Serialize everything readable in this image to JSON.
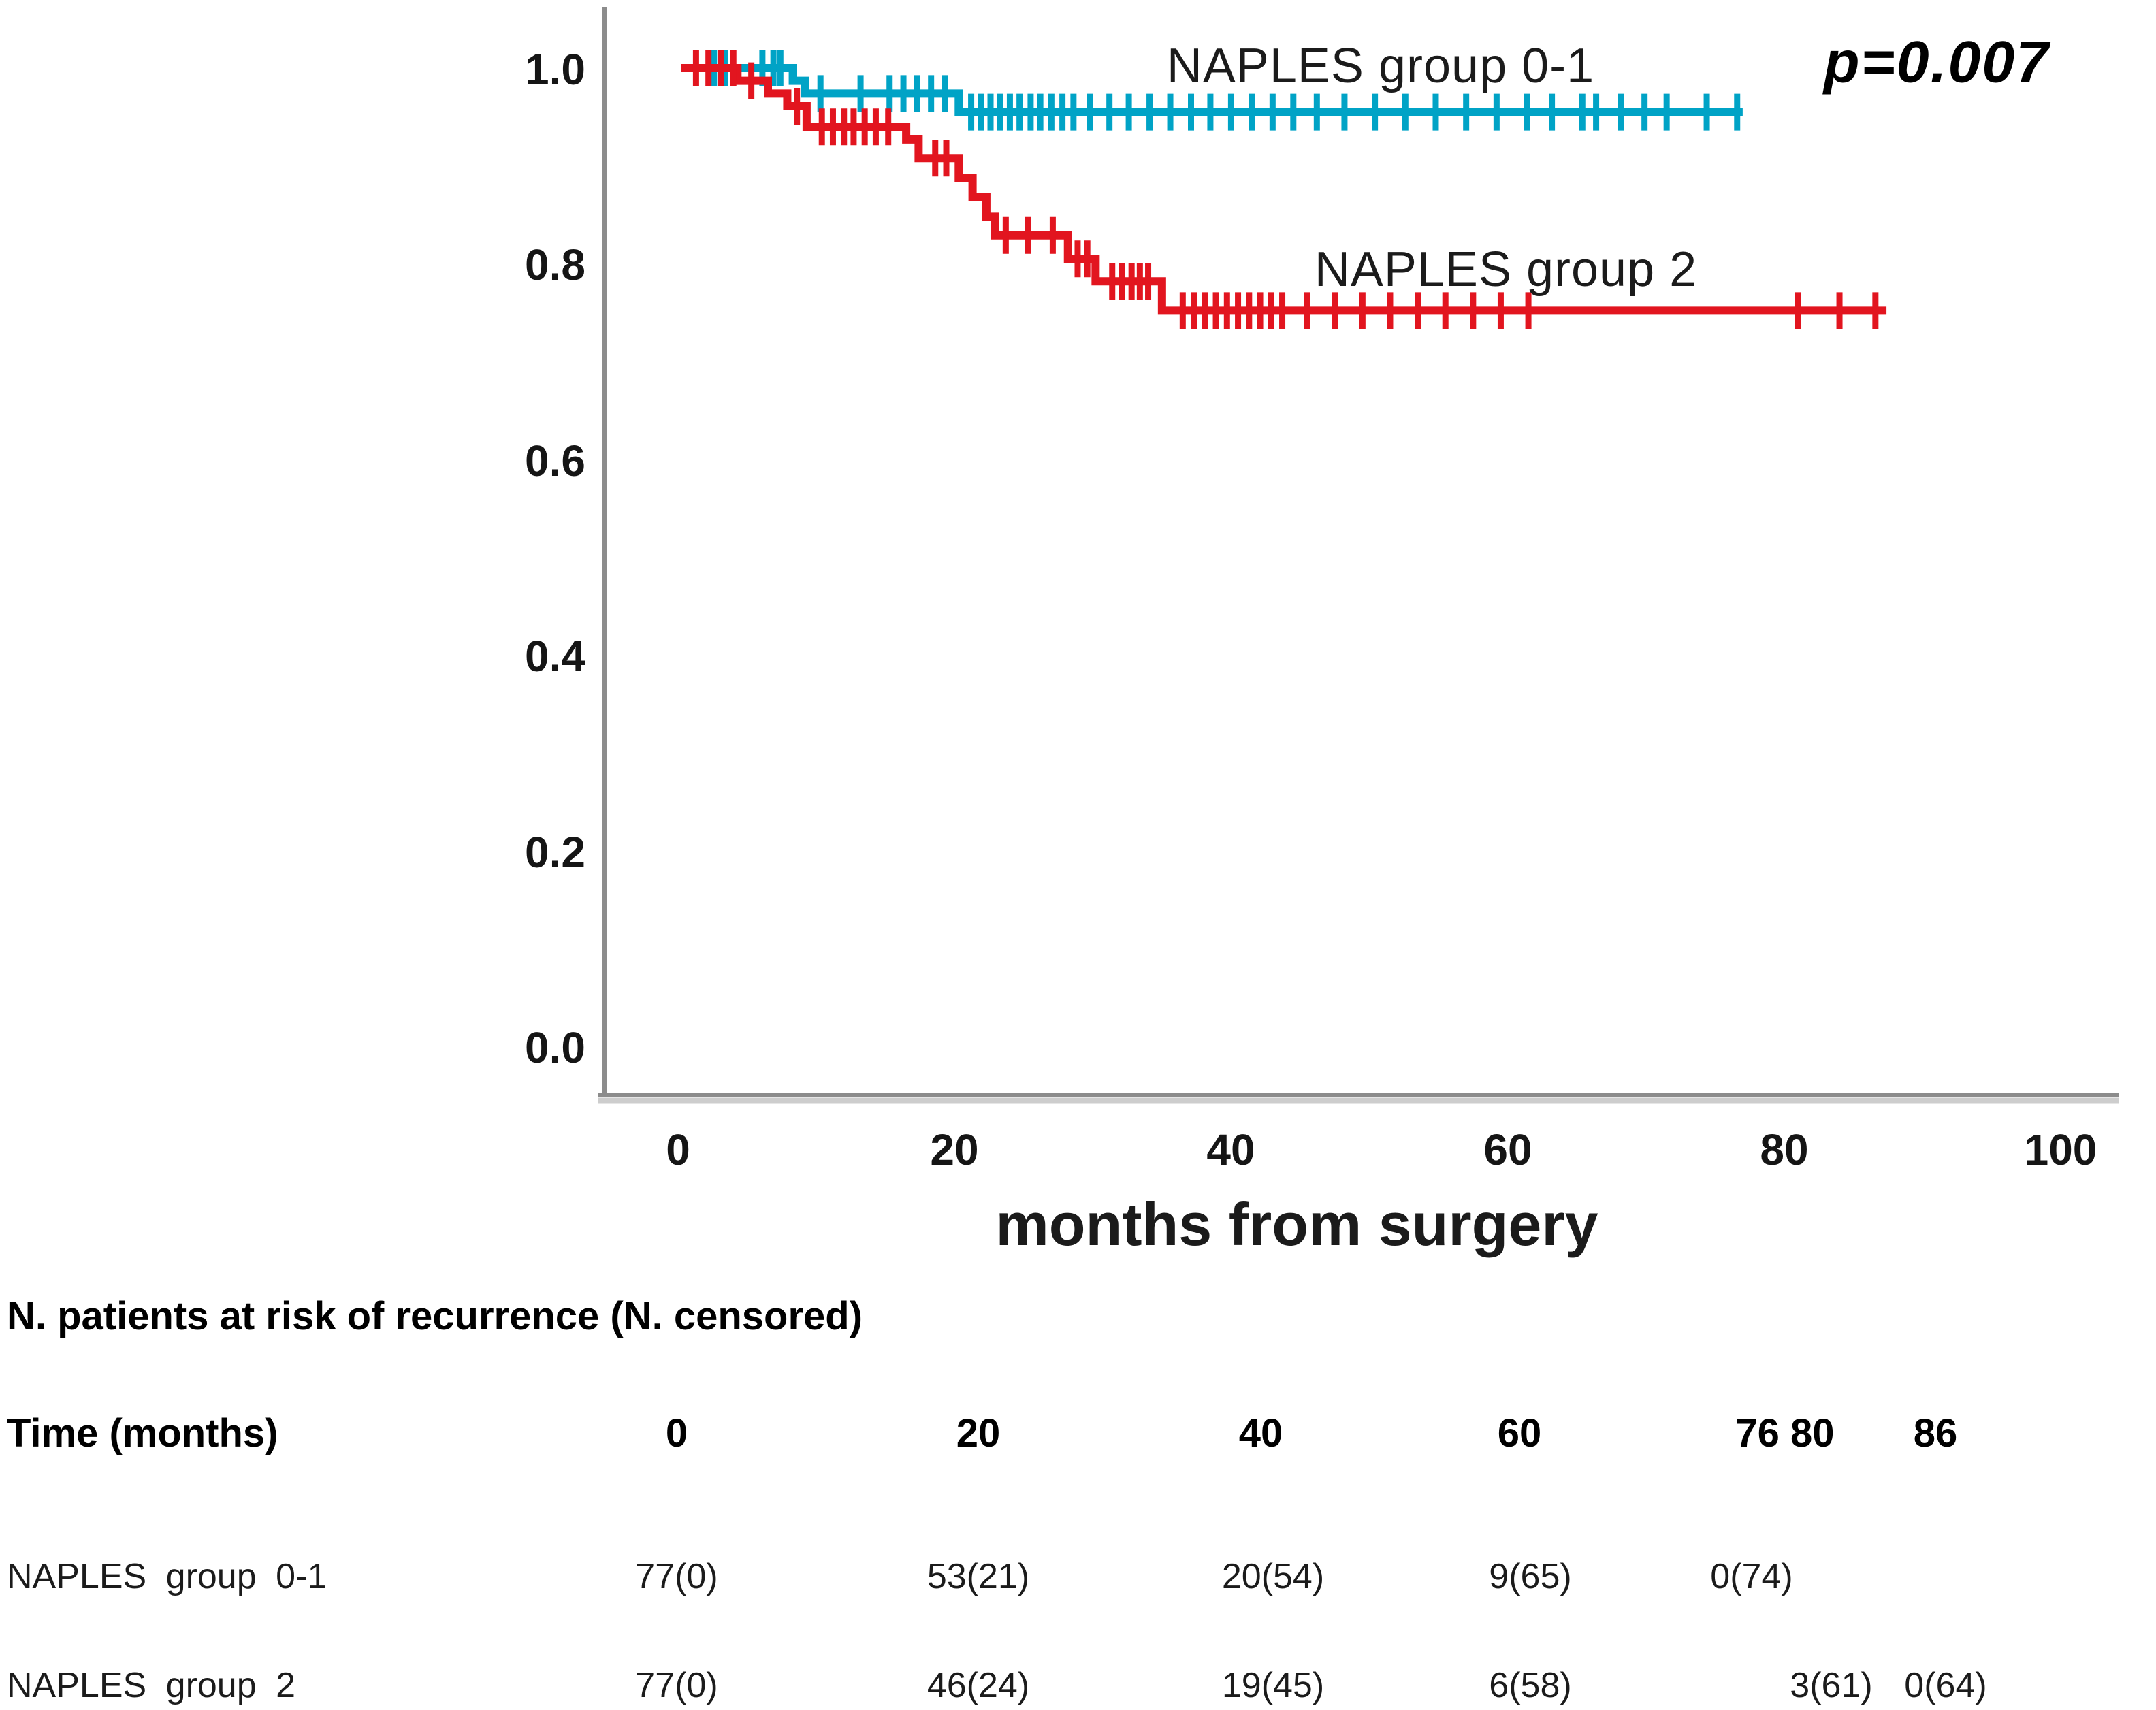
{
  "page": {
    "background": "#ffffff"
  },
  "chart_data": {
    "type": "line",
    "subtype": "kaplan-meier-step",
    "title": "",
    "xlabel": "months from surgery",
    "ylabel": "",
    "xlim": [
      0,
      104
    ],
    "ylim": [
      0.0,
      1.05
    ],
    "grid": false,
    "legend_position": "inline-labels-on-plot",
    "pvalue_label": "p=0.007",
    "axis_color": "#8c8c8c",
    "axis_shadow_color": "#cdcdcd",
    "xtick_labels": [
      "0",
      "20",
      "40",
      "60",
      "80",
      "100"
    ],
    "xtick_values": [
      0,
      20,
      40,
      60,
      80,
      100
    ],
    "ytick_labels": [
      "1.0",
      "0.8",
      "0.6",
      "0.4",
      "0.2",
      "0.0"
    ],
    "ytick_values": [
      1.0,
      0.8,
      0.6,
      0.4,
      0.2,
      0.0
    ],
    "series": [
      {
        "name": "NAPLES group 0-1",
        "color": "#00a3c6",
        "start_month": 0.2,
        "end_month": 77.0,
        "start_value": 1.0,
        "steps": [
          [
            8.3,
            0.987
          ],
          [
            9.2,
            0.974
          ],
          [
            20.3,
            0.955
          ]
        ],
        "censor_months": [
          2.6,
          3.4,
          6.1,
          6.9,
          7.4,
          10.3,
          13.2,
          15.3,
          16.3,
          17.3,
          18.3,
          19.3,
          21.2,
          21.9,
          22.6,
          23.3,
          24.0,
          24.7,
          25.5,
          26.2,
          27.0,
          27.8,
          28.6,
          29.8,
          31.2,
          32.6,
          34.1,
          35.6,
          37.1,
          38.5,
          40.0,
          41.5,
          43.0,
          44.5,
          46.2,
          48.2,
          50.4,
          52.6,
          54.8,
          57.0,
          59.2,
          61.4,
          63.2,
          65.4,
          66.4,
          68.2,
          69.9,
          71.5,
          74.4,
          76.6
        ]
      },
      {
        "name": "NAPLES group 2",
        "color": "#e2151f",
        "start_month": 0.2,
        "end_month": 87.4,
        "start_value": 1.0,
        "steps": [
          [
            4.3,
            0.987
          ],
          [
            6.5,
            0.974
          ],
          [
            7.9,
            0.961
          ],
          [
            9.3,
            0.94
          ],
          [
            16.5,
            0.927
          ],
          [
            17.4,
            0.908
          ],
          [
            20.3,
            0.888
          ],
          [
            21.3,
            0.868
          ],
          [
            22.3,
            0.848
          ],
          [
            22.9,
            0.829
          ],
          [
            28.2,
            0.805
          ],
          [
            30.2,
            0.782
          ],
          [
            35.0,
            0.752
          ]
        ],
        "censor_months": [
          1.3,
          2.2,
          3.1,
          4.0,
          5.3,
          8.6,
          10.4,
          11.2,
          12.0,
          12.7,
          13.5,
          14.3,
          15.2,
          18.6,
          19.4,
          23.7,
          25.3,
          27.1,
          28.9,
          29.6,
          31.4,
          32.1,
          32.8,
          33.4,
          34.0,
          36.5,
          37.3,
          38.1,
          38.9,
          39.7,
          40.5,
          41.3,
          42.1,
          42.9,
          43.7,
          45.5,
          47.5,
          49.5,
          51.5,
          53.5,
          55.5,
          57.5,
          59.5,
          61.5,
          81.0,
          84.0,
          86.6
        ]
      }
    ]
  },
  "risk_table": {
    "title": "N. patients at risk of recurrence (N. censored)",
    "time_label": "Time (months)",
    "time_columns": [
      "0",
      "20",
      "40",
      "60",
      "76 80",
      "86"
    ],
    "rows": [
      {
        "label": "NAPLES group 0-1",
        "values": [
          "77(0)",
          "53(21)",
          "20(54)",
          "9(65)",
          "0(74)"
        ]
      },
      {
        "label": "NAPLES group 2",
        "values": [
          "77(0)",
          "46(24)",
          "19(45)",
          "6(58)",
          "3(61)",
          "0(64)"
        ]
      }
    ]
  }
}
